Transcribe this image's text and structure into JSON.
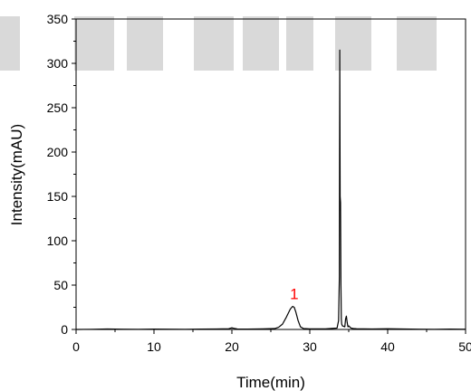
{
  "chart_data": {
    "type": "line",
    "xlabel": "Time(min)",
    "ylabel": "Intensity(mAU)",
    "xlim": [
      0,
      50
    ],
    "ylim": [
      0,
      350
    ],
    "x_ticks": [
      0,
      10,
      20,
      30,
      40,
      50
    ],
    "y_ticks": [
      0,
      50,
      100,
      150,
      200,
      250,
      300,
      350
    ],
    "grid": false,
    "line_color": "#000000",
    "series": [
      {
        "x": [
          0,
          2,
          4,
          6,
          8,
          10,
          12,
          14,
          16,
          18,
          19.6,
          20.0,
          20.3,
          20.7,
          22,
          24,
          25.5,
          26.0,
          26.5,
          27.0,
          27.5,
          27.8,
          28.0,
          28.2,
          28.5,
          28.8,
          29.2,
          30,
          32,
          33.5,
          33.7,
          33.8,
          33.85,
          33.9,
          33.95,
          34.0,
          34.05,
          34.1,
          34.2,
          34.5,
          34.6,
          34.7,
          34.8,
          34.9,
          35.0,
          35.3,
          35.6,
          36,
          38,
          40,
          42,
          44,
          46,
          48,
          50
        ],
        "y": [
          0,
          0.2,
          0.5,
          0.3,
          0.2,
          0.4,
          0.3,
          0.2,
          0.4,
          0.5,
          0.8,
          1.8,
          1.2,
          0.5,
          0.4,
          0.6,
          1.0,
          2.5,
          6.0,
          14.0,
          23.0,
          26.0,
          25.0,
          20.0,
          10.0,
          3.0,
          1.0,
          0.6,
          0.6,
          1.5,
          10.0,
          60.0,
          315.0,
          150.0,
          143.0,
          50.0,
          12.0,
          6.0,
          4.0,
          3.0,
          12.0,
          15.0,
          8.0,
          3.0,
          4.0,
          1.5,
          1.0,
          0.8,
          0.5,
          0.8,
          0.5,
          0.3,
          0.2,
          0.4,
          0.3
        ]
      }
    ],
    "annotations": [
      {
        "text": "1",
        "x": 28.0,
        "y": 26.0,
        "color": "#ff0000"
      }
    ]
  }
}
